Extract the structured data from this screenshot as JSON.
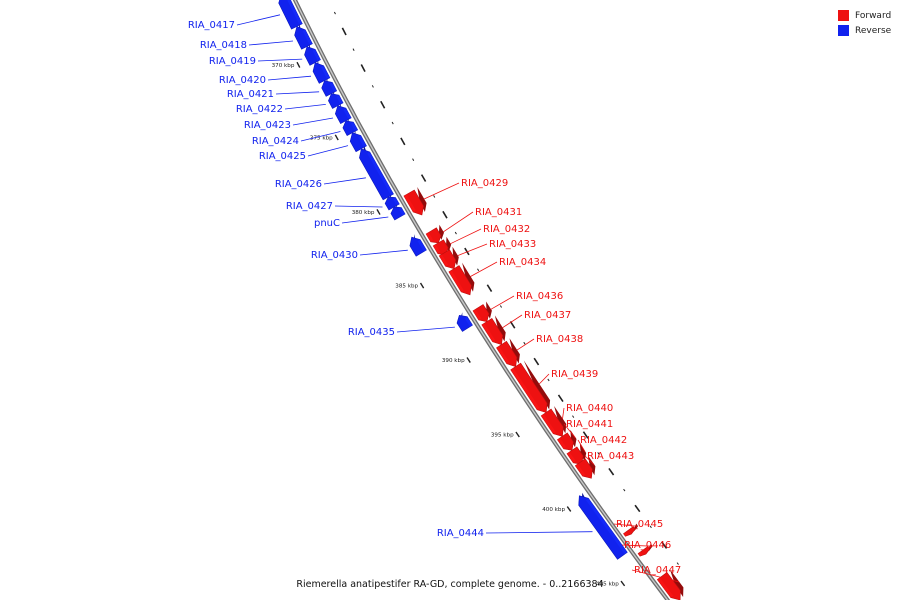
{
  "colors": {
    "forward": "#ee1111",
    "reverse": "#1122ee",
    "backbone": "#8a8a8a"
  },
  "legend": {
    "forward_label": "Forward",
    "reverse_label": "Reverse"
  },
  "caption": "Riemerella anatipestifer RA-GD, complete genome. - 0..2166384",
  "ticks": [
    {
      "label": "370 kbp"
    },
    {
      "label": "375 kbp"
    },
    {
      "label": "380 kbp"
    },
    {
      "label": "385 kbp"
    },
    {
      "label": "390 kbp"
    },
    {
      "label": "395 kbp"
    },
    {
      "label": "400 kbp"
    },
    {
      "label": "405 kbp"
    }
  ],
  "genes": [
    {
      "name": "RIA_0417",
      "strand": "reverse"
    },
    {
      "name": "RIA_0418",
      "strand": "reverse"
    },
    {
      "name": "RIA_0419",
      "strand": "reverse"
    },
    {
      "name": "RIA_0420",
      "strand": "reverse"
    },
    {
      "name": "RIA_0421",
      "strand": "reverse"
    },
    {
      "name": "RIA_0422",
      "strand": "reverse"
    },
    {
      "name": "RIA_0423",
      "strand": "reverse"
    },
    {
      "name": "RIA_0424",
      "strand": "reverse"
    },
    {
      "name": "RIA_0425",
      "strand": "reverse"
    },
    {
      "name": "RIA_0426",
      "strand": "reverse"
    },
    {
      "name": "RIA_0427",
      "strand": "reverse"
    },
    {
      "name": "pnuC",
      "strand": "reverse"
    },
    {
      "name": "RIA_0429",
      "strand": "forward"
    },
    {
      "name": "RIA_0430",
      "strand": "reverse"
    },
    {
      "name": "RIA_0431",
      "strand": "forward"
    },
    {
      "name": "RIA_0432",
      "strand": "forward"
    },
    {
      "name": "RIA_0433",
      "strand": "forward"
    },
    {
      "name": "RIA_0434",
      "strand": "forward"
    },
    {
      "name": "RIA_0435",
      "strand": "reverse"
    },
    {
      "name": "RIA_0436",
      "strand": "forward"
    },
    {
      "name": "RIA_0437",
      "strand": "forward"
    },
    {
      "name": "RIA_0438",
      "strand": "forward"
    },
    {
      "name": "RIA_0439",
      "strand": "forward"
    },
    {
      "name": "RIA_0440",
      "strand": "forward"
    },
    {
      "name": "RIA_0441",
      "strand": "forward"
    },
    {
      "name": "RIA_0442",
      "strand": "forward"
    },
    {
      "name": "RIA_0443",
      "strand": "forward"
    },
    {
      "name": "RIA_0444",
      "strand": "reverse"
    },
    {
      "name": "RIA_0445",
      "strand": "forward"
    },
    {
      "name": "RIA_0446",
      "strand": "forward"
    },
    {
      "name": "RIA_0447",
      "strand": "forward"
    }
  ]
}
